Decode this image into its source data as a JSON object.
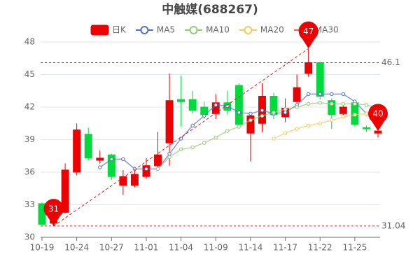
{
  "chart_data": {
    "type": "candlestick",
    "title": "中触媒(688267)",
    "categories": [
      "10-19",
      null,
      null,
      "10-24",
      null,
      null,
      "10-27",
      null,
      null,
      "11-01",
      null,
      null,
      "11-04",
      null,
      null,
      "11-09",
      null,
      null,
      "11-14",
      null,
      null,
      "11-17",
      null,
      null,
      "11-22",
      null,
      null,
      "11-25",
      null,
      null
    ],
    "ylim": [
      30,
      48
    ],
    "yticks": [
      30,
      33,
      36,
      39,
      42,
      45,
      48
    ],
    "grid": true,
    "series": [
      {
        "name": "日K",
        "up_color": "#ec0000",
        "down_color": "#00da3c",
        "open": [
          33.1,
          31.3,
          32.3,
          36.0,
          39.5,
          37.1,
          37.6,
          34.8,
          34.8,
          35.6,
          36.6,
          38.7,
          42.7,
          42.7,
          42.0,
          41.4,
          42.4,
          44.0,
          39.6,
          40.5,
          43.0,
          41.1,
          42.5,
          45.1,
          46.1,
          42.6,
          41.4,
          42.4,
          40.1,
          39.6
        ],
        "close": [
          31.2,
          31.5,
          36.2,
          39.9,
          37.3,
          37.3,
          35.6,
          35.6,
          35.8,
          36.6,
          37.6,
          42.6,
          42.5,
          41.7,
          41.3,
          42.4,
          41.7,
          40.4,
          41.2,
          43.0,
          41.3,
          41.9,
          43.8,
          46.1,
          43.0,
          41.3,
          42.0,
          40.4,
          40.0,
          39.8
        ],
        "high": [
          33.2,
          31.8,
          36.8,
          40.5,
          40.1,
          38.0,
          37.7,
          36.2,
          36.5,
          37.3,
          39.7,
          45.1,
          44.9,
          43.5,
          42.5,
          43.2,
          43.5,
          44.2,
          41.4,
          44.2,
          43.3,
          42.8,
          45.0,
          47.4,
          46.2,
          42.8,
          42.1,
          42.6,
          40.3,
          39.9
        ],
        "low": [
          31.1,
          31.04,
          32.2,
          35.7,
          37.1,
          36.8,
          35.3,
          33.9,
          34.6,
          35.4,
          36.2,
          36.6,
          40.2,
          41.4,
          40.9,
          40.9,
          41.3,
          40.0,
          37.0,
          39.7,
          40.9,
          40.6,
          42.0,
          44.8,
          42.7,
          40.0,
          41.3,
          40.2,
          39.7,
          39.2
        ]
      },
      {
        "name": "MA5",
        "color": "#5470c6",
        "values": [
          null,
          null,
          null,
          null,
          null,
          36.45,
          37.2,
          37.2,
          36.3,
          36.3,
          36.3,
          37.7,
          39.1,
          40.3,
          41.2,
          42.2,
          42.1,
          41.5,
          41.4,
          41.7,
          41.4,
          41.5,
          42.2,
          43.2,
          43.2,
          43.2,
          43.2,
          42.5,
          41.4,
          40.9
        ]
      },
      {
        "name": "MA10",
        "color": "#91cc75",
        "values": [
          null,
          null,
          null,
          null,
          null,
          null,
          null,
          null,
          null,
          null,
          36.3,
          37.4,
          38.1,
          38.3,
          38.7,
          39.2,
          39.8,
          40.2,
          40.8,
          41.2,
          41.5,
          41.8,
          42.0,
          42.3,
          42.4,
          42.3,
          42.3,
          42.3,
          42.2,
          41.9
        ]
      },
      {
        "name": "MA20",
        "color": "#fac858",
        "values": [
          null,
          null,
          null,
          null,
          null,
          null,
          null,
          null,
          null,
          null,
          null,
          null,
          null,
          null,
          null,
          null,
          null,
          null,
          null,
          null,
          39.1,
          39.6,
          40.0,
          40.3,
          40.5,
          40.8,
          41.1,
          41.3,
          41.4,
          41.5
        ]
      },
      {
        "name": "MA30",
        "color": "#ee6666",
        "values": [
          null,
          null,
          null,
          null,
          null,
          null,
          null,
          null,
          null,
          null,
          null,
          null,
          null,
          null,
          null,
          null,
          null,
          null,
          null,
          null,
          null,
          null,
          null,
          null,
          null,
          null,
          null,
          null,
          null,
          41.2
        ]
      }
    ],
    "mark_points": [
      {
        "value": 47.4,
        "label": "47"
      },
      {
        "value": 31.04,
        "label": "31"
      },
      {
        "value": 39.8,
        "label": "40"
      }
    ],
    "mark_lines": [
      46.1,
      31.04
    ]
  }
}
